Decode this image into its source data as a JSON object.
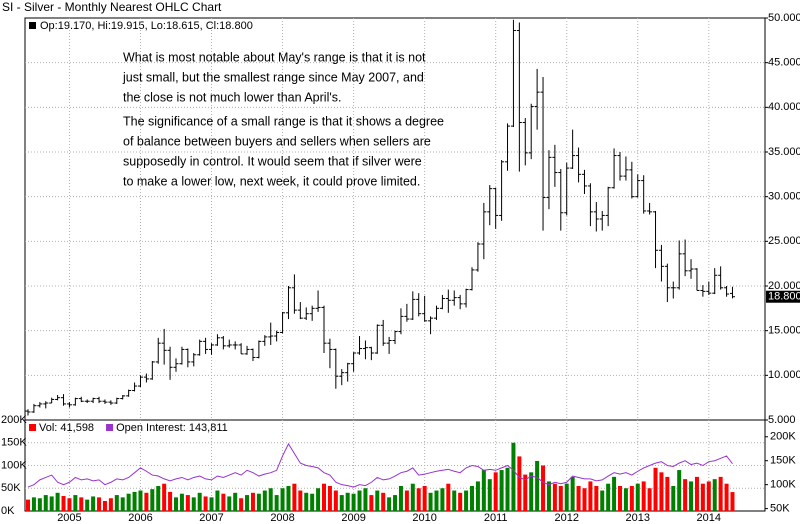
{
  "chart_data": {
    "type": "ohlc",
    "title": "SI - Silver - Monthly Nearest OHLC Chart",
    "ohlc_header": "Op:19.170, Hi:19.915, Lo:18.615, Cl:18.800",
    "annotation": [
      [
        "What is most notable about May's range is that it is not",
        "just small, but the smallest range since May 2007, and",
        "the close is not much lower than April's."
      ],
      [
        "The significance of a small range is that it shows a degree",
        "of balance between buyers and sellers when sellers are",
        "supposedly in control.  It would seem that if silver were",
        "to make a lower low, next week, it could prove limited."
      ]
    ],
    "categories": [
      null,
      null,
      null,
      null,
      null,
      null,
      null,
      "2005",
      null,
      null,
      null,
      null,
      null,
      null,
      null,
      null,
      null,
      null,
      null,
      "2006",
      null,
      null,
      null,
      null,
      null,
      null,
      null,
      null,
      null,
      null,
      null,
      "2007",
      null,
      null,
      null,
      null,
      null,
      null,
      null,
      null,
      null,
      null,
      null,
      "2008",
      null,
      null,
      null,
      null,
      null,
      null,
      null,
      null,
      null,
      null,
      null,
      "2009",
      null,
      null,
      null,
      null,
      null,
      null,
      null,
      null,
      null,
      null,
      null,
      "2010",
      null,
      null,
      null,
      null,
      null,
      null,
      null,
      null,
      null,
      null,
      null,
      "2011",
      null,
      null,
      null,
      null,
      null,
      null,
      null,
      null,
      null,
      null,
      null,
      "2012",
      null,
      null,
      null,
      null,
      null,
      null,
      null,
      null,
      null,
      null,
      null,
      "2013",
      null,
      null,
      null,
      null,
      null,
      null,
      null,
      null,
      null,
      null,
      null,
      "2014",
      null,
      null,
      null,
      null
    ],
    "open": [
      6.0,
      5.9,
      6.6,
      6.8,
      6.9,
      7.3,
      7.5,
      6.8,
      6.7,
      7.4,
      7.1,
      7.1,
      7.4,
      7.1,
      7.0,
      6.9,
      7.4,
      7.7,
      8.3,
      8.8,
      9.8,
      9.6,
      11.5,
      13.6,
      12.8,
      10.9,
      11.3,
      12.9,
      11.5,
      12.3,
      13.8,
      12.9,
      13.4,
      14.2,
      13.3,
      13.4,
      13.4,
      12.4,
      12.9,
      12.0,
      13.8,
      14.3,
      14.4,
      14.8,
      17.0,
      19.8,
      17.3,
      16.4,
      16.9,
      17.5,
      17.6,
      13.6,
      12.9,
      9.9,
      10.3,
      11.3,
      12.5,
      13.0,
      13.1,
      12.5,
      15.6,
      13.6,
      13.9,
      14.9,
      16.6,
      16.3,
      18.5,
      16.9,
      16.1,
      16.4,
      17.5,
      18.6,
      18.4,
      18.7,
      18.0,
      19.6,
      21.8,
      24.7,
      28.3,
      30.9,
      27.9,
      33.9,
      37.9,
      48.6,
      38.3,
      34.9,
      40.1,
      41.7,
      29.9,
      34.4,
      32.7,
      28.2,
      33.2,
      34.6,
      32.5,
      31.2,
      28.3,
      27.5,
      27.9,
      31.0,
      34.6,
      32.3,
      33.0,
      30.0,
      31.8,
      28.4,
      28.3,
      24.0,
      22.2,
      19.8,
      19.8,
      23.6,
      21.7,
      21.9,
      19.5,
      19.4,
      19.2,
      21.2,
      19.8,
      19.17
    ],
    "high": [
      6.2,
      6.8,
      7.0,
      7.1,
      7.5,
      7.8,
      7.9,
      7.0,
      7.5,
      7.6,
      7.3,
      7.5,
      7.6,
      7.3,
      7.2,
      7.5,
      7.8,
      8.4,
      9.2,
      10.0,
      10.2,
      11.6,
      14.2,
      15.2,
      13.2,
      11.9,
      13.2,
      13.0,
      12.5,
      14.0,
      14.2,
      13.6,
      14.6,
      14.4,
      14.0,
      13.8,
      13.6,
      13.3,
      13.0,
      13.9,
      14.5,
      15.9,
      15.0,
      17.1,
      20.0,
      21.3,
      18.2,
      17.6,
      17.8,
      19.5,
      17.8,
      14.1,
      13.0,
      10.7,
      11.4,
      12.6,
      14.4,
      13.9,
      13.2,
      15.7,
      16.2,
      14.3,
      15.0,
      17.5,
      18.0,
      19.4,
      19.2,
      18.9,
      16.6,
      17.8,
      19.0,
      19.6,
      19.5,
      19.0,
      19.7,
      22.1,
      24.9,
      29.3,
      31.3,
      31.0,
      34.1,
      38.2,
      49.8,
      49.5,
      38.8,
      40.4,
      44.3,
      43.4,
      35.2,
      35.8,
      33.1,
      33.8,
      37.5,
      35.5,
      33.0,
      31.5,
      29.4,
      28.4,
      31.1,
      35.4,
      35.0,
      34.5,
      33.9,
      32.5,
      32.4,
      29.3,
      28.4,
      24.6,
      22.5,
      20.5,
      25.1,
      25.2,
      23.0,
      22.0,
      20.1,
      20.5,
      22.0,
      22.2,
      20.0,
      19.915
    ],
    "low": [
      5.5,
      5.8,
      6.4,
      6.3,
      6.9,
      7.2,
      6.6,
      6.4,
      6.6,
      7.0,
      6.9,
      6.9,
      6.9,
      6.8,
      6.7,
      6.8,
      7.3,
      7.6,
      8.2,
      8.7,
      9.2,
      9.5,
      11.3,
      11.2,
      9.5,
      10.4,
      11.2,
      10.9,
      11.0,
      12.2,
      12.4,
      12.3,
      13.3,
      12.9,
      13.1,
      12.9,
      12.4,
      12.3,
      11.6,
      11.9,
      13.3,
      13.4,
      13.8,
      14.7,
      16.3,
      16.9,
      16.3,
      16.2,
      16.1,
      17.1,
      12.5,
      10.8,
      8.5,
      8.9,
      9.3,
      10.4,
      12.3,
      11.8,
      11.7,
      12.4,
      13.3,
      12.4,
      13.5,
      14.6,
      16.0,
      16.2,
      16.6,
      16.0,
      14.6,
      16.2,
      17.4,
      17.0,
      17.8,
      17.4,
      17.6,
      19.5,
      21.6,
      23.0,
      26.8,
      26.4,
      27.3,
      32.9,
      37.8,
      32.8,
      33.5,
      34.2,
      37.5,
      26.2,
      28.6,
      31.1,
      26.2,
      27.9,
      33.1,
      31.6,
      30.3,
      26.7,
      26.1,
      26.2,
      26.7,
      30.9,
      31.8,
      31.8,
      29.8,
      29.9,
      28.1,
      28.0,
      22.0,
      20.5,
      18.2,
      18.6,
      19.6,
      21.1,
      20.8,
      19.5,
      18.8,
      19.0,
      19.1,
      19.6,
      18.8,
      18.615
    ],
    "close": [
      5.9,
      6.6,
      6.8,
      6.9,
      7.3,
      7.5,
      6.8,
      6.7,
      7.4,
      7.1,
      7.1,
      7.4,
      7.1,
      7.0,
      6.9,
      7.4,
      7.7,
      8.3,
      8.8,
      9.8,
      9.6,
      11.5,
      13.6,
      12.8,
      10.9,
      11.3,
      12.9,
      11.5,
      12.3,
      13.8,
      12.9,
      13.4,
      14.2,
      13.3,
      13.4,
      13.4,
      12.4,
      12.9,
      12.0,
      13.8,
      14.3,
      14.4,
      14.8,
      17.0,
      19.8,
      17.3,
      16.4,
      16.9,
      17.5,
      17.6,
      13.6,
      12.9,
      9.9,
      10.3,
      11.3,
      12.5,
      13.0,
      13.1,
      12.5,
      15.6,
      13.6,
      13.9,
      14.9,
      16.6,
      16.3,
      18.5,
      16.9,
      16.1,
      16.4,
      17.5,
      18.6,
      18.4,
      18.7,
      18.0,
      19.6,
      21.8,
      24.7,
      28.3,
      30.9,
      27.9,
      33.9,
      37.9,
      48.6,
      38.3,
      34.9,
      40.1,
      41.7,
      29.9,
      34.4,
      32.7,
      28.2,
      33.2,
      34.6,
      32.5,
      31.2,
      28.3,
      27.5,
      27.9,
      31.0,
      34.6,
      32.3,
      33.0,
      30.0,
      31.8,
      28.4,
      28.3,
      24.0,
      22.2,
      19.8,
      19.8,
      23.6,
      21.7,
      21.9,
      19.5,
      19.4,
      19.2,
      21.2,
      19.8,
      19.1,
      18.8
    ],
    "last_close_label": "18.800",
    "color": "#000000",
    "ylim": [
      5,
      50
    ],
    "yticks": [
      {
        "value": 5,
        "label": "5.000"
      },
      {
        "value": 10,
        "label": "10.000"
      },
      {
        "value": 15,
        "label": "15.000"
      },
      {
        "value": 20,
        "label": "20.000"
      },
      {
        "value": 25,
        "label": "25.000"
      },
      {
        "value": 30,
        "label": "30.000"
      },
      {
        "value": 35,
        "label": "35.000"
      },
      {
        "value": 40,
        "label": "40.000"
      },
      {
        "value": 45,
        "label": "45.000"
      },
      {
        "value": 50,
        "label": "50.000"
      }
    ],
    "grid": true,
    "series": [
      {
        "name": "Vol: 41,598",
        "color": "#ff0000",
        "up_color": "#008000",
        "down_color": "#ff0000",
        "axis": "vol",
        "values": [
          25000,
          30000,
          28000,
          35000,
          32000,
          40000,
          33000,
          28000,
          35000,
          30000,
          25000,
          32000,
          30000,
          22000,
          28000,
          35000,
          30000,
          38000,
          42000,
          45000,
          40000,
          48000,
          55000,
          60000,
          42000,
          30000,
          38000,
          35000,
          30000,
          40000,
          32000,
          30000,
          45000,
          38000,
          32000,
          40000,
          28000,
          35000,
          40000,
          38000,
          45000,
          50000,
          35000,
          50000,
          55000,
          60000,
          45000,
          40000,
          38000,
          50000,
          60000,
          55000,
          45000,
          35000,
          40000,
          38000,
          45000,
          50000,
          35000,
          45000,
          40000,
          30000,
          35000,
          55000,
          45000,
          60000,
          50000,
          55000,
          40000,
          45000,
          50000,
          60000,
          45000,
          40000,
          45000,
          55000,
          65000,
          90000,
          70000,
          85000,
          90000,
          95000,
          150000,
          120000,
          80000,
          85000,
          110000,
          100000,
          65000,
          60000,
          55000,
          60000,
          75000,
          55000,
          50000,
          65000,
          55000,
          45000,
          60000,
          75000,
          55000,
          50000,
          55000,
          60000,
          65000,
          50000,
          95000,
          85000,
          75000,
          55000,
          90000,
          70000,
          65000,
          75000,
          60000,
          65000,
          70000,
          75000,
          60000,
          41598
        ]
      },
      {
        "name": "Open Interest: 143,811",
        "color": "#9933cc",
        "axis": "y2",
        "values": [
          95000,
          100000,
          110000,
          115000,
          120000,
          105000,
          100000,
          105000,
          115000,
          110000,
          112000,
          108000,
          110000,
          100000,
          105000,
          112000,
          110000,
          115000,
          125000,
          135000,
          128000,
          120000,
          118000,
          112000,
          108000,
          112000,
          115000,
          110000,
          115000,
          118000,
          112000,
          110000,
          118000,
          115000,
          120000,
          125000,
          120000,
          130000,
          125000,
          118000,
          122000,
          125000,
          130000,
          160000,
          185000,
          165000,
          145000,
          140000,
          138000,
          135000,
          125000,
          120000,
          105000,
          100000,
          98000,
          95000,
          100000,
          98000,
          105000,
          115000,
          110000,
          112000,
          118000,
          125000,
          128000,
          135000,
          120000,
          122000,
          125000,
          128000,
          130000,
          132000,
          128000,
          125000,
          135000,
          140000,
          138000,
          130000,
          132000,
          130000,
          135000,
          140000,
          130000,
          115000,
          110000,
          118000,
          115000,
          105000,
          100000,
          105000,
          102000,
          105000,
          118000,
          115000,
          112000,
          112000,
          108000,
          110000,
          118000,
          125000,
          122000,
          125000,
          120000,
          128000,
          135000,
          140000,
          145000,
          148000,
          140000,
          138000,
          145000,
          150000,
          142000,
          145000,
          140000,
          148000,
          150000,
          155000,
          160000,
          143811
        ]
      }
    ],
    "vol_ylim": [
      0,
      200000
    ],
    "vol_yticks": [
      {
        "value": 0,
        "label": "0K"
      },
      {
        "value": 50000,
        "label": "50K"
      },
      {
        "value": 100000,
        "label": "100K"
      },
      {
        "value": 150000,
        "label": "150K"
      },
      {
        "value": 200000,
        "label": "200K"
      }
    ],
    "y2lim": [
      45000,
      235000
    ],
    "y2ticks": [
      {
        "value": 50000,
        "label": "50K"
      },
      {
        "value": 100000,
        "label": "100K"
      },
      {
        "value": 150000,
        "label": "150K"
      },
      {
        "value": 200000,
        "label": "200K"
      }
    ]
  }
}
